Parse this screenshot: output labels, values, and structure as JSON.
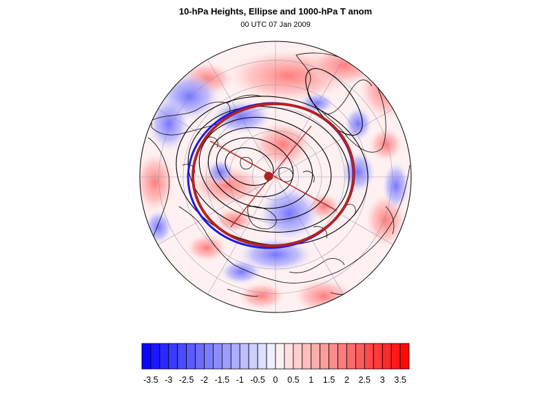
{
  "title": "10-hPa Heights, Ellipse and 1000-hPa T anom",
  "subtitle": "00 UTC 07 Jan 2009",
  "colors": {
    "ellipse_red": "#b22222",
    "ellipse_blue": "#1a1ae6",
    "contour": "#000000",
    "grid": "#8888aa"
  },
  "colorbar": {
    "min": -3.75,
    "max": 3.75,
    "step": 0.25,
    "tick_labels": [
      "-3.5",
      "-3",
      "-2.5",
      "-2",
      "-1.5",
      "-1",
      "-0.5",
      "0",
      "0.5",
      "1",
      "1.5",
      "2",
      "2.5",
      "3",
      "3.5"
    ]
  }
}
